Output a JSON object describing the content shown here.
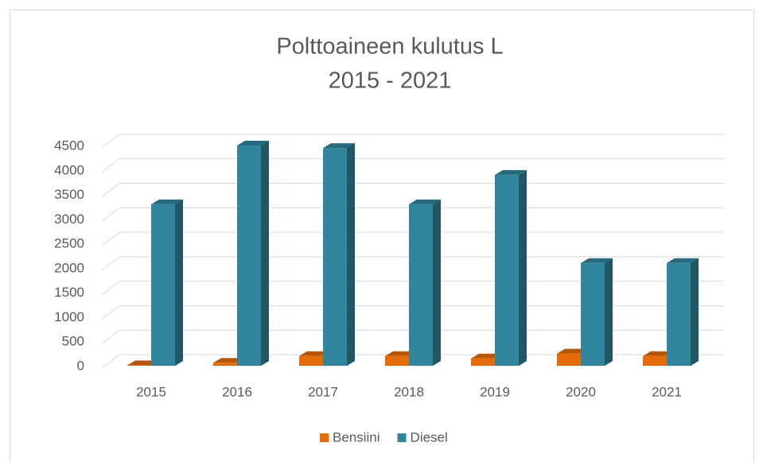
{
  "chart_data": {
    "type": "bar3d",
    "title": "Polttoaineen kulutus L",
    "subtitle": "2015 - 2021",
    "categories": [
      "2015",
      "2016",
      "2017",
      "2018",
      "2019",
      "2020",
      "2021"
    ],
    "series": [
      {
        "name": "Bensiini",
        "color": "#e46c0a",
        "values": [
          10,
          60,
          200,
          200,
          150,
          250,
          200
        ]
      },
      {
        "name": "Diesel",
        "color": "#31859c",
        "values": [
          3300,
          4500,
          4450,
          3300,
          3900,
          2100,
          2100
        ]
      }
    ],
    "ylim": [
      0,
      4500
    ],
    "yticks": [
      0,
      500,
      1000,
      1500,
      2000,
      2500,
      3000,
      3500,
      4000,
      4500
    ],
    "grid": true,
    "legend": "bottom"
  }
}
